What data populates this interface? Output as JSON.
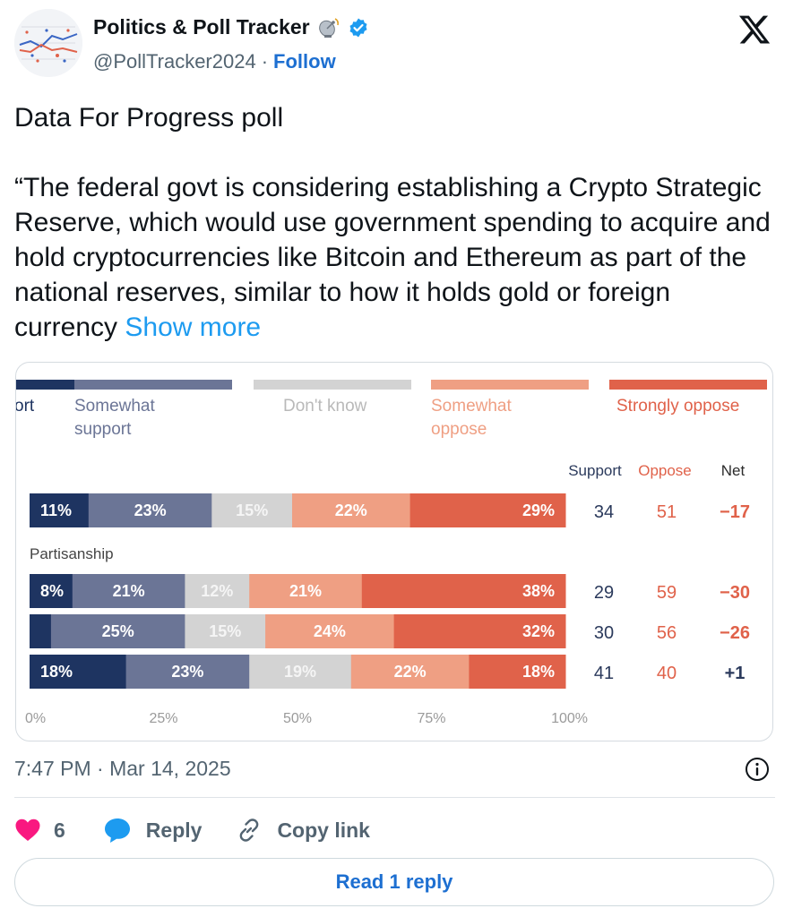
{
  "header": {
    "display_name": "Politics & Poll Tracker",
    "name_emoji_icon": "satellite-dish-emoji",
    "verified_icon": "verified-badge-icon",
    "handle": "@PollTracker2024",
    "separator": "·",
    "follow_label": "Follow",
    "platform_logo": "x-logo"
  },
  "tweet": {
    "line1": "Data For Progress poll",
    "body": "“The federal govt is considering establishing a Crypto Strategic Reserve, which would use government spending to acquire and hold cryptocurrencies like Bitcoin and Ethereum as part of the national reserves, similar to how it holds gold or foreign currency",
    "show_more": "Show more"
  },
  "chart_data": {
    "type": "bar",
    "orientation": "horizontal-stacked-100",
    "legend": [
      {
        "label": "ort",
        "color": "#1e3461"
      },
      {
        "label": "Somewhat support",
        "color": "#6b7596"
      },
      {
        "label": "Don't know",
        "color": "#d3d3d3"
      },
      {
        "label": "Somewhat oppose",
        "color": "#ef9f83"
      },
      {
        "label": "Strongly oppose",
        "color": "#e0624a"
      }
    ],
    "legend_placement": "top",
    "group_label": "Partisanship",
    "summary_headers": [
      "Support",
      "Oppose",
      "Net"
    ],
    "rows": [
      {
        "values": [
          11,
          23,
          15,
          22,
          29
        ],
        "labels": [
          "11%",
          "23%",
          "15%",
          "22%",
          "29%"
        ],
        "support": "34",
        "oppose": "51",
        "net": "−17"
      },
      {
        "values": [
          8,
          21,
          12,
          21,
          38
        ],
        "labels": [
          "8%",
          "21%",
          "12%",
          "21%",
          "38%"
        ],
        "support": "29",
        "oppose": "59",
        "net": "−30"
      },
      {
        "values": [
          4,
          25,
          15,
          24,
          32
        ],
        "labels": [
          "",
          "25%",
          "15%",
          "24%",
          "32%"
        ],
        "support": "30",
        "oppose": "56",
        "net": "−26"
      },
      {
        "values": [
          18,
          23,
          19,
          22,
          18
        ],
        "labels": [
          "18%",
          "23%",
          "19%",
          "22%",
          "18%"
        ],
        "support": "41",
        "oppose": "40",
        "net": "+1"
      }
    ],
    "x_ticks": [
      "0%",
      "25%",
      "50%",
      "75%",
      "100%"
    ],
    "xlim": [
      0,
      100
    ],
    "colors": {
      "support_text": "#2b3a5c",
      "oppose_text": "#e0624a",
      "net_negative": "#e0624a",
      "net_positive": "#2b3a5c"
    }
  },
  "meta": {
    "timestamp": "7:47 PM · Mar 14, 2025",
    "info_icon": "info-icon"
  },
  "actions": {
    "like_count": "6",
    "reply_label": "Reply",
    "copy_label": "Copy link",
    "read_reply_label": "Read 1 reply"
  },
  "colors": {
    "link_blue": "#1d6fd1",
    "like_pink": "#f91880",
    "reply_blue": "#1d9bf0"
  }
}
